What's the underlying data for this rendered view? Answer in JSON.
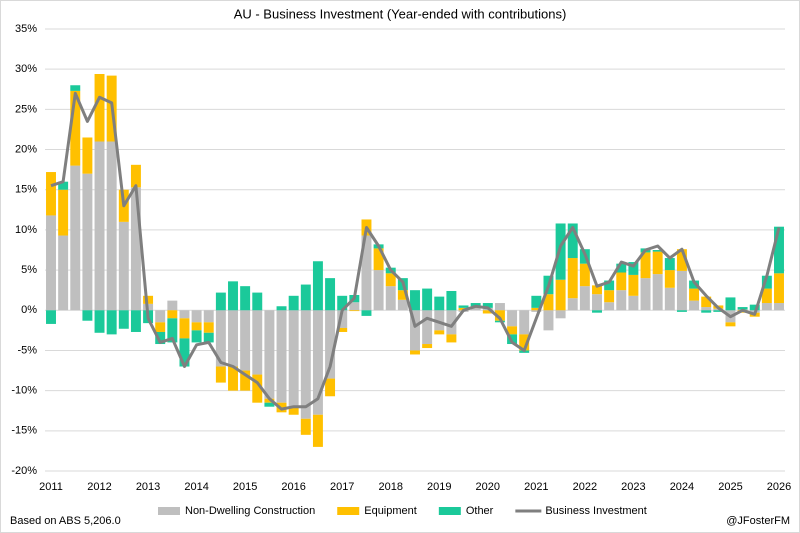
{
  "chart_data": {
    "type": "bar",
    "stacked": true,
    "title": "AU - Business Investment (Year-ended with contributions)",
    "source": "Based on ABS 5,206.0",
    "credit": "@JFosterFM",
    "categories": [
      "2011",
      null,
      null,
      null,
      "2012",
      null,
      null,
      null,
      "2013",
      null,
      null,
      null,
      "2014",
      null,
      null,
      null,
      "2015",
      null,
      null,
      null,
      "2016",
      null,
      null,
      null,
      "2017",
      null,
      null,
      null,
      "2018",
      null,
      null,
      null,
      "2019",
      null,
      null,
      null,
      "2020",
      null,
      null,
      null,
      "2021",
      null,
      null,
      null,
      "2022",
      null,
      null,
      null,
      "2023",
      null,
      null,
      null,
      "2024",
      null,
      null,
      null,
      "2025",
      null,
      null,
      null,
      "2026"
    ],
    "series": [
      {
        "name": "Non-Dwelling Construction",
        "color": "#bfbfbf",
        "values": [
          11.8,
          9.3,
          18,
          17,
          21,
          21,
          11,
          15.3,
          0.8,
          -1.5,
          1.2,
          -1,
          -1.5,
          -1.5,
          -7,
          -7,
          -7.5,
          -8,
          -11,
          -11.5,
          -12,
          -13.5,
          -13,
          -8.5,
          -2.2,
          1,
          9.3,
          5,
          3,
          1.3,
          -5,
          -4.2,
          -2.5,
          -3,
          -0.2,
          0.3,
          0.3,
          0.9,
          -2,
          -3,
          -0.2,
          -2.5,
          -1,
          1.5,
          3,
          2,
          1,
          2.5,
          1.8,
          4,
          4.5,
          2.8,
          4.9,
          1.2,
          0.4,
          0.2,
          -1.5,
          0.1,
          -0.3,
          0.9,
          0.9
        ]
      },
      {
        "name": "Equipment",
        "color": "#ffc000",
        "values": [
          5.4,
          5.7,
          9.3,
          4.5,
          8.4,
          8.2,
          4,
          2.8,
          1,
          -1.2,
          -1,
          -2.5,
          -1,
          -1.3,
          -2,
          -3,
          -2.5,
          -3.5,
          -0.5,
          -1.2,
          -1,
          -2,
          -4,
          -2.2,
          -0.5,
          -0.1,
          2,
          2.7,
          1.6,
          1.2,
          -0.5,
          -0.5,
          -0.5,
          -1,
          0.3,
          0.2,
          -0.4,
          -1.3,
          -1,
          -2,
          0.3,
          2,
          3.8,
          5,
          2.8,
          1.1,
          1.5,
          2.2,
          2.6,
          3.2,
          2.8,
          2.2,
          2.7,
          1.5,
          1.3,
          0.4,
          -0.5,
          -0.3,
          -0.5,
          1.8,
          3.7
        ]
      },
      {
        "name": "Other",
        "color": "#1bc99a",
        "values": [
          -1.7,
          1,
          0.7,
          -1.3,
          -2.8,
          -3,
          -2.3,
          -2.7,
          -1.6,
          -1.5,
          -3,
          -3.5,
          -1.5,
          -1.2,
          2.2,
          3.6,
          3,
          2.2,
          -0.5,
          0.5,
          1.8,
          3.2,
          6.1,
          4,
          1.8,
          0.9,
          -0.7,
          0.5,
          0.7,
          1.5,
          2.5,
          2.7,
          1.7,
          2.4,
          0.3,
          0.4,
          0.6,
          -0.2,
          -1.2,
          -0.3,
          1.5,
          2.3,
          7,
          4.3,
          1.8,
          -0.3,
          1.2,
          1.1,
          1.6,
          0.5,
          0.2,
          1.5,
          -0.2,
          1,
          -0.3,
          -0.2,
          1.6,
          0.3,
          0.7,
          1.6,
          5.8
        ]
      },
      {
        "name": "Business Investment",
        "color": "#7f7f7f",
        "type": "line",
        "values": [
          15.5,
          16,
          27,
          23.5,
          26.5,
          25.8,
          13,
          15.5,
          -1,
          -4,
          -3.5,
          -7,
          -4.3,
          -4,
          -6.5,
          -7,
          -8,
          -9,
          -11,
          -12.3,
          -12,
          -12,
          -11,
          -7,
          0,
          1.5,
          10.3,
          8,
          5,
          3.5,
          -2,
          -1,
          -1.5,
          -2,
          0,
          0.5,
          0.3,
          -1,
          -4,
          -5,
          -1,
          3,
          8,
          10.3,
          7,
          3,
          3.5,
          6,
          5.5,
          7.5,
          8,
          6.5,
          7.6,
          3.5,
          1.8,
          0.3,
          -0.8,
          0,
          -0.5,
          4.3,
          10.3
        ]
      }
    ],
    "ylim": [
      -20,
      35
    ],
    "yticks": [
      {
        "value": -20,
        "label": "-20%"
      },
      {
        "value": -15,
        "label": "-15%"
      },
      {
        "value": -10,
        "label": "-10%"
      },
      {
        "value": -5,
        "label": "-5%"
      },
      {
        "value": 0,
        "label": "0%"
      },
      {
        "value": 5,
        "label": "5%"
      },
      {
        "value": 10,
        "label": "10%"
      },
      {
        "value": 15,
        "label": "15%"
      },
      {
        "value": 20,
        "label": "20%"
      },
      {
        "value": 25,
        "label": "25%"
      },
      {
        "value": 30,
        "label": "30%"
      },
      {
        "value": 35,
        "label": "35%"
      }
    ],
    "grid": true,
    "legend": "bottom"
  }
}
